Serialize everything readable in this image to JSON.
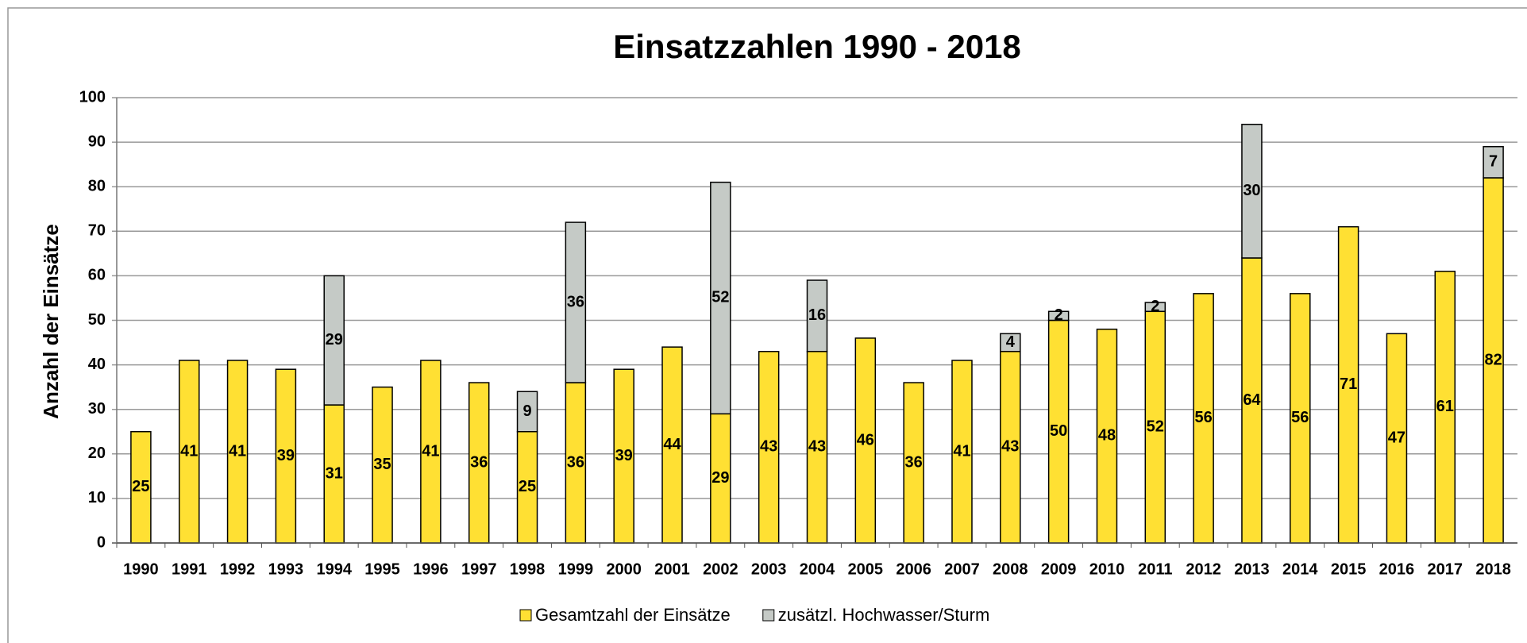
{
  "chart_data": {
    "type": "stacked_bar",
    "title": "Einsatzzahlen 1990 - 2018",
    "y_label": "Anzahl der Einsätze",
    "categories": [
      "1990",
      "1991",
      "1992",
      "1993",
      "1994",
      "1995",
      "1996",
      "1997",
      "1998",
      "1999",
      "2000",
      "2001",
      "2002",
      "2003",
      "2004",
      "2005",
      "2006",
      "2007",
      "2008",
      "2009",
      "2010",
      "2011",
      "2012",
      "2013",
      "2014",
      "2015",
      "2016",
      "2017",
      "2018"
    ],
    "series": [
      {
        "name": "Gesamtzahl der Einsätze",
        "color": "#ffe033",
        "values": [
          25,
          41,
          41,
          39,
          31,
          35,
          41,
          36,
          25,
          36,
          39,
          44,
          29,
          43,
          43,
          46,
          36,
          41,
          43,
          50,
          48,
          52,
          56,
          64,
          56,
          71,
          47,
          61,
          82
        ]
      },
      {
        "name": "zusätzl. Hochwasser/Sturm",
        "color": "#c5cac6",
        "values": [
          null,
          null,
          null,
          null,
          29,
          null,
          null,
          null,
          9,
          36,
          null,
          null,
          52,
          null,
          16,
          null,
          null,
          null,
          4,
          2,
          null,
          2,
          null,
          30,
          null,
          null,
          null,
          null,
          7
        ]
      }
    ],
    "ylim": [
      0,
      100
    ],
    "yticks": [
      0,
      10,
      20,
      30,
      40,
      50,
      60,
      70,
      80,
      90,
      100
    ],
    "grid": true,
    "legend": "bottom"
  }
}
